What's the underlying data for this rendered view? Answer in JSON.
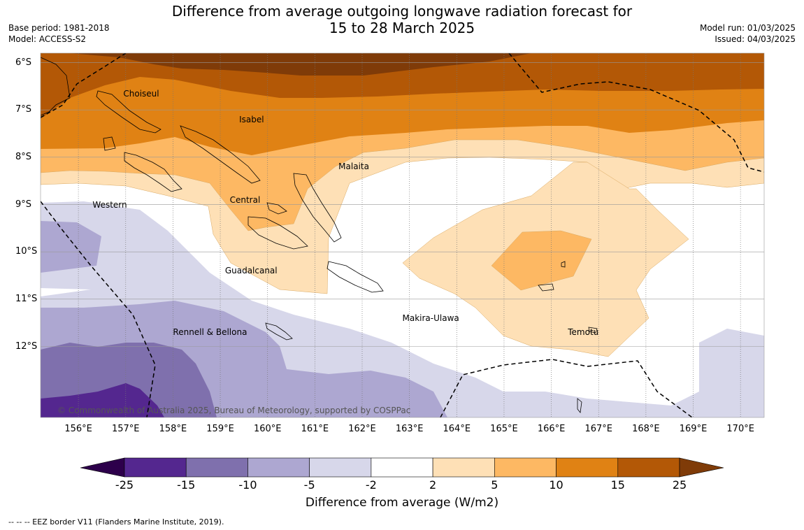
{
  "title": {
    "line1": "Difference from average outgoing longwave radiation forecast for",
    "line2": "15 to 28 March 2025"
  },
  "meta_left": {
    "base_period": "Base period: 1981-2018",
    "model": "Model: ACCESS-S2"
  },
  "meta_right": {
    "model_run": "Model run: 01/03/2025",
    "issued": "Issued: 04/03/2025"
  },
  "map": {
    "lon_range": [
      155.2,
      170.5
    ],
    "lat_range": [
      -13.5,
      -5.8
    ],
    "lat_labels": [
      {
        "lat": -6,
        "text": "6°S"
      },
      {
        "lat": -7,
        "text": "7°S"
      },
      {
        "lat": -8,
        "text": "8°S"
      },
      {
        "lat": -9,
        "text": "9°S"
      },
      {
        "lat": -10,
        "text": "10°S"
      },
      {
        "lat": -11,
        "text": "11°S"
      },
      {
        "lat": -12,
        "text": "12°S"
      }
    ],
    "lon_labels": [
      {
        "lon": 156,
        "text": "156°E"
      },
      {
        "lon": 157,
        "text": "157°E"
      },
      {
        "lon": 158,
        "text": "158°E"
      },
      {
        "lon": 159,
        "text": "159°E"
      },
      {
        "lon": 160,
        "text": "160°E"
      },
      {
        "lon": 161,
        "text": "161°E"
      },
      {
        "lon": 162,
        "text": "162°E"
      },
      {
        "lon": 163,
        "text": "163°E"
      },
      {
        "lon": 164,
        "text": "164°E"
      },
      {
        "lon": 165,
        "text": "165°E"
      },
      {
        "lon": 166,
        "text": "166°E"
      },
      {
        "lon": 167,
        "text": "167°E"
      },
      {
        "lon": 168,
        "text": "168°E"
      },
      {
        "lon": 169,
        "text": "169°E"
      },
      {
        "lon": 170,
        "text": "170°E"
      }
    ],
    "places": [
      {
        "name": "Choiseul",
        "lon": 156.95,
        "lat": -6.65
      },
      {
        "name": "Isabel",
        "lon": 159.4,
        "lat": -7.2
      },
      {
        "name": "Malaita",
        "lon": 161.5,
        "lat": -8.2
      },
      {
        "name": "Western",
        "lon": 156.3,
        "lat": -9.0
      },
      {
        "name": "Central",
        "lon": 159.2,
        "lat": -8.9
      },
      {
        "name": "Guadalcanal",
        "lon": 159.1,
        "lat": -10.4
      },
      {
        "name": "Makira-Ulawa",
        "lon": 162.85,
        "lat": -11.4
      },
      {
        "name": "Rennell & Bellona",
        "lon": 158.0,
        "lat": -11.7
      },
      {
        "name": "Temotu",
        "lon": 166.35,
        "lat": -11.7
      }
    ],
    "copyright": "© Commonwealth of Australia 2025, Bureau of Meteorology, supported by COSPPac"
  },
  "colorbar": {
    "label": "Difference from average (W/m2)",
    "ticks": [
      "-25",
      "-15",
      "-10",
      "-5",
      "-2",
      "2",
      "5",
      "10",
      "15",
      "25"
    ],
    "colors": [
      "#54278f",
      "#7f70ad",
      "#ada7d1",
      "#d7d7ea",
      "#ffffff",
      "#fee0b6",
      "#fdb863",
      "#e08214",
      "#b35806"
    ],
    "under_color": "#2d004b",
    "over_color": "#7f3b08"
  },
  "footnote": "--  --  -- EEZ border V11 (Flanders Marine Institute, 2019)."
}
